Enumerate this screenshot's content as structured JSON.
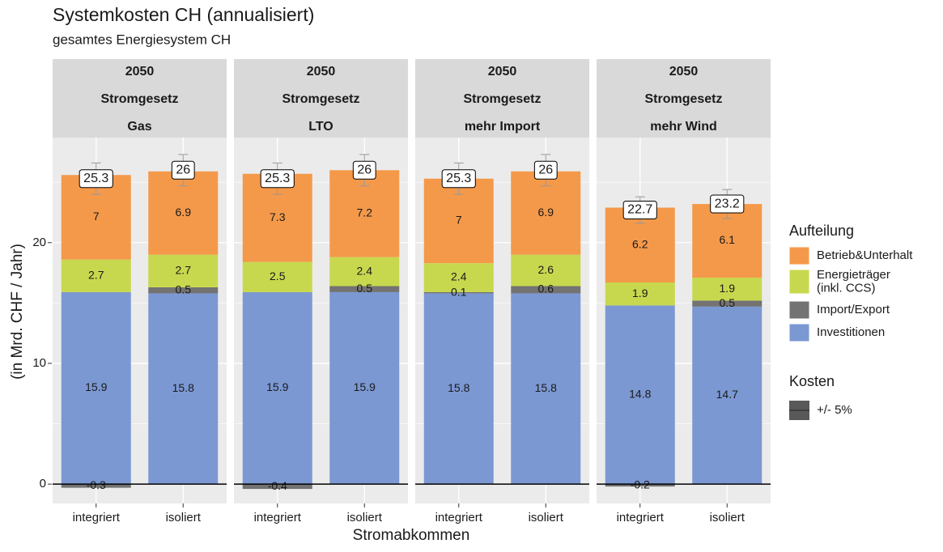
{
  "chart_data": {
    "type": "bar",
    "title": "Systemkosten CH (annualisiert)",
    "subtitle": "gesamtes Energiesystem CH",
    "x_label": "Stromabkommen",
    "y_label": "(in Mrd. CHF / Jahr)",
    "categories": [
      "integriert",
      "isoliert"
    ],
    "ylim": [
      -1.6,
      28.7
    ],
    "yticks": [
      0,
      10,
      20
    ],
    "minor_grid": [
      5,
      15,
      25
    ],
    "grid": true,
    "legend_position": "right",
    "legend_title": "Aufteilung",
    "series": [
      {
        "name": "Investitionen",
        "color": "#7b98d3"
      },
      {
        "name": "Import/Export",
        "color": "#737373"
      },
      {
        "name": "Energieträger\n(inkl. CCS)",
        "color": "#c8d84e"
      },
      {
        "name": "Betrieb&Unterhalt",
        "color": "#f4994a"
      }
    ],
    "error_legend_title": "Kosten",
    "error_legend_label": "+/- 5%",
    "facets": [
      {
        "strip": [
          "2050",
          "Stromgesetz",
          "Gas"
        ],
        "values": [
          [
            15.9,
            15.8
          ],
          [
            -0.3,
            0.5
          ],
          [
            2.7,
            2.7
          ],
          [
            7,
            6.9
          ]
        ],
        "totals": [
          25.3,
          26
        ],
        "errors": [
          1.3,
          1.3
        ]
      },
      {
        "strip": [
          "2050",
          "Stromgesetz",
          "LTO"
        ],
        "values": [
          [
            15.9,
            15.9
          ],
          [
            -0.4,
            0.5
          ],
          [
            2.5,
            2.4
          ],
          [
            7.3,
            7.2
          ]
        ],
        "totals": [
          25.3,
          26
        ],
        "errors": [
          1.3,
          1.3
        ]
      },
      {
        "strip": [
          "2050",
          "Stromgesetz",
          "mehr Import"
        ],
        "values": [
          [
            15.8,
            15.8
          ],
          [
            0.1,
            0.6
          ],
          [
            2.4,
            2.6
          ],
          [
            7,
            6.9
          ]
        ],
        "totals": [
          25.3,
          26
        ],
        "errors": [
          1.3,
          1.3
        ]
      },
      {
        "strip": [
          "2050",
          "Stromgesetz",
          "mehr Wind"
        ],
        "values": [
          [
            14.8,
            14.7
          ],
          [
            -0.2,
            0.5
          ],
          [
            1.9,
            1.9
          ],
          [
            6.2,
            6.1
          ]
        ],
        "totals": [
          22.7,
          23.2
        ],
        "errors": [
          1.1,
          1.2
        ]
      }
    ]
  }
}
